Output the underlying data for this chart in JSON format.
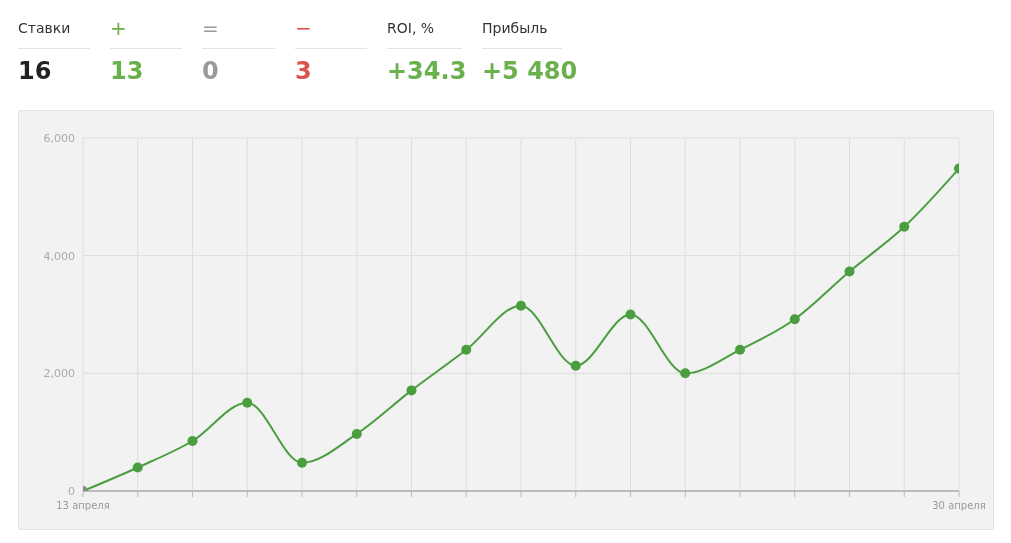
{
  "chart_data": [
    {
      "type": "other",
      "categories": [
        "Ставки",
        "+",
        "=",
        "−",
        "ROI, %",
        "Прибыль"
      ],
      "value_labels": [
        "16",
        "13",
        "0",
        "3",
        "+34.3",
        "+5 480"
      ],
      "colors": [
        "#222222",
        "#6ab04c",
        "#9a9a9a",
        "#d9534f",
        "#6ab04c",
        "#6ab04c"
      ]
    },
    {
      "type": "line",
      "categories": [
        "13 апреля",
        null,
        null,
        null,
        null,
        null,
        null,
        null,
        null,
        null,
        null,
        null,
        null,
        null,
        null,
        null,
        "30 апреля"
      ],
      "series": [
        {
          "color": "#4a9e3f",
          "values": [
            0,
            400,
            850,
            1500,
            480,
            970,
            1710,
            2400,
            3150,
            2130,
            3000,
            2000,
            2400,
            2920,
            3730,
            4490,
            5480
          ],
          "colors": [
            "#8a8a8a",
            "#4a9e3f",
            "#4a9e3f",
            "#4a9e3f",
            "#4a9e3f",
            "#4a9e3f",
            "#4a9e3f",
            "#4a9e3f",
            "#4a9e3f",
            "#4a9e3f",
            "#4a9e3f",
            "#4a9e3f",
            "#4a9e3f",
            "#4a9e3f",
            "#4a9e3f",
            "#4a9e3f",
            "#4a9e3f"
          ]
        }
      ],
      "ylim": [
        0,
        6000
      ],
      "yticks": [
        0,
        {
          "value": 2000,
          "label": "2,000"
        },
        {
          "value": 4000,
          "label": "4,000"
        },
        {
          "value": 6000,
          "label": "6,000"
        }
      ],
      "grid": true,
      "marker": "circle",
      "line_style": "solid",
      "legend": false
    }
  ]
}
